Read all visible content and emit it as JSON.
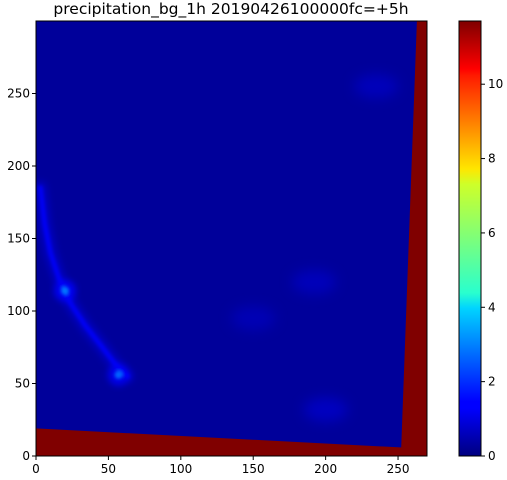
{
  "chart_data": {
    "type": "heatmap",
    "title": "precipitation_bg_1h 20190426100000fc=+5h",
    "xlabel": "",
    "ylabel": "",
    "xlim": [
      0,
      270
    ],
    "ylim": [
      0,
      300
    ],
    "x_ticks": [
      0,
      50,
      100,
      150,
      200,
      250
    ],
    "x_tick_labels": [
      "0",
      "50",
      "100",
      "150",
      "200",
      "250"
    ],
    "y_ticks": [
      0,
      50,
      100,
      150,
      200,
      250
    ],
    "y_tick_labels": [
      "0",
      "50",
      "100",
      "150",
      "200",
      "250"
    ],
    "colorbar": {
      "colormap": "jet",
      "vmin": 0,
      "vmax": 11.7,
      "ticks": [
        0,
        2,
        4,
        6,
        8,
        10
      ],
      "tick_labels": [
        "0",
        "2",
        "4",
        "6",
        "8",
        "10"
      ]
    },
    "background_value": 0.3,
    "nodata_regions": [
      {
        "name": "bottom-band",
        "value": 11.7,
        "polygon": [
          [
            0,
            0
          ],
          [
            270,
            0
          ],
          [
            270,
            5
          ],
          [
            0,
            19
          ]
        ]
      },
      {
        "name": "right-band",
        "value": 11.7,
        "polygon": [
          [
            252,
            0
          ],
          [
            270,
            0
          ],
          [
            270,
            300
          ],
          [
            263,
            300
          ]
        ]
      }
    ],
    "features": [
      {
        "name": "rain-streak",
        "value": 1.4,
        "path": [
          [
            3,
            185
          ],
          [
            6,
            160
          ],
          [
            10,
            140
          ],
          [
            16,
            122
          ],
          [
            24,
            105
          ],
          [
            34,
            90
          ],
          [
            45,
            76
          ],
          [
            55,
            63
          ],
          [
            63,
            55
          ]
        ]
      },
      {
        "name": "max-cell-1",
        "value": 2.8,
        "x": 20,
        "y": 114
      },
      {
        "name": "max-cell-2",
        "value": 2.6,
        "x": 57,
        "y": 56
      },
      {
        "name": "weak-cell-1",
        "value": 0.9,
        "x": 200,
        "y": 32
      },
      {
        "name": "weak-cell-2",
        "value": 0.8,
        "x": 192,
        "y": 120
      },
      {
        "name": "weak-cell-3",
        "value": 0.8,
        "x": 235,
        "y": 255
      },
      {
        "name": "weak-cell-4",
        "value": 0.7,
        "x": 150,
        "y": 95
      }
    ]
  }
}
